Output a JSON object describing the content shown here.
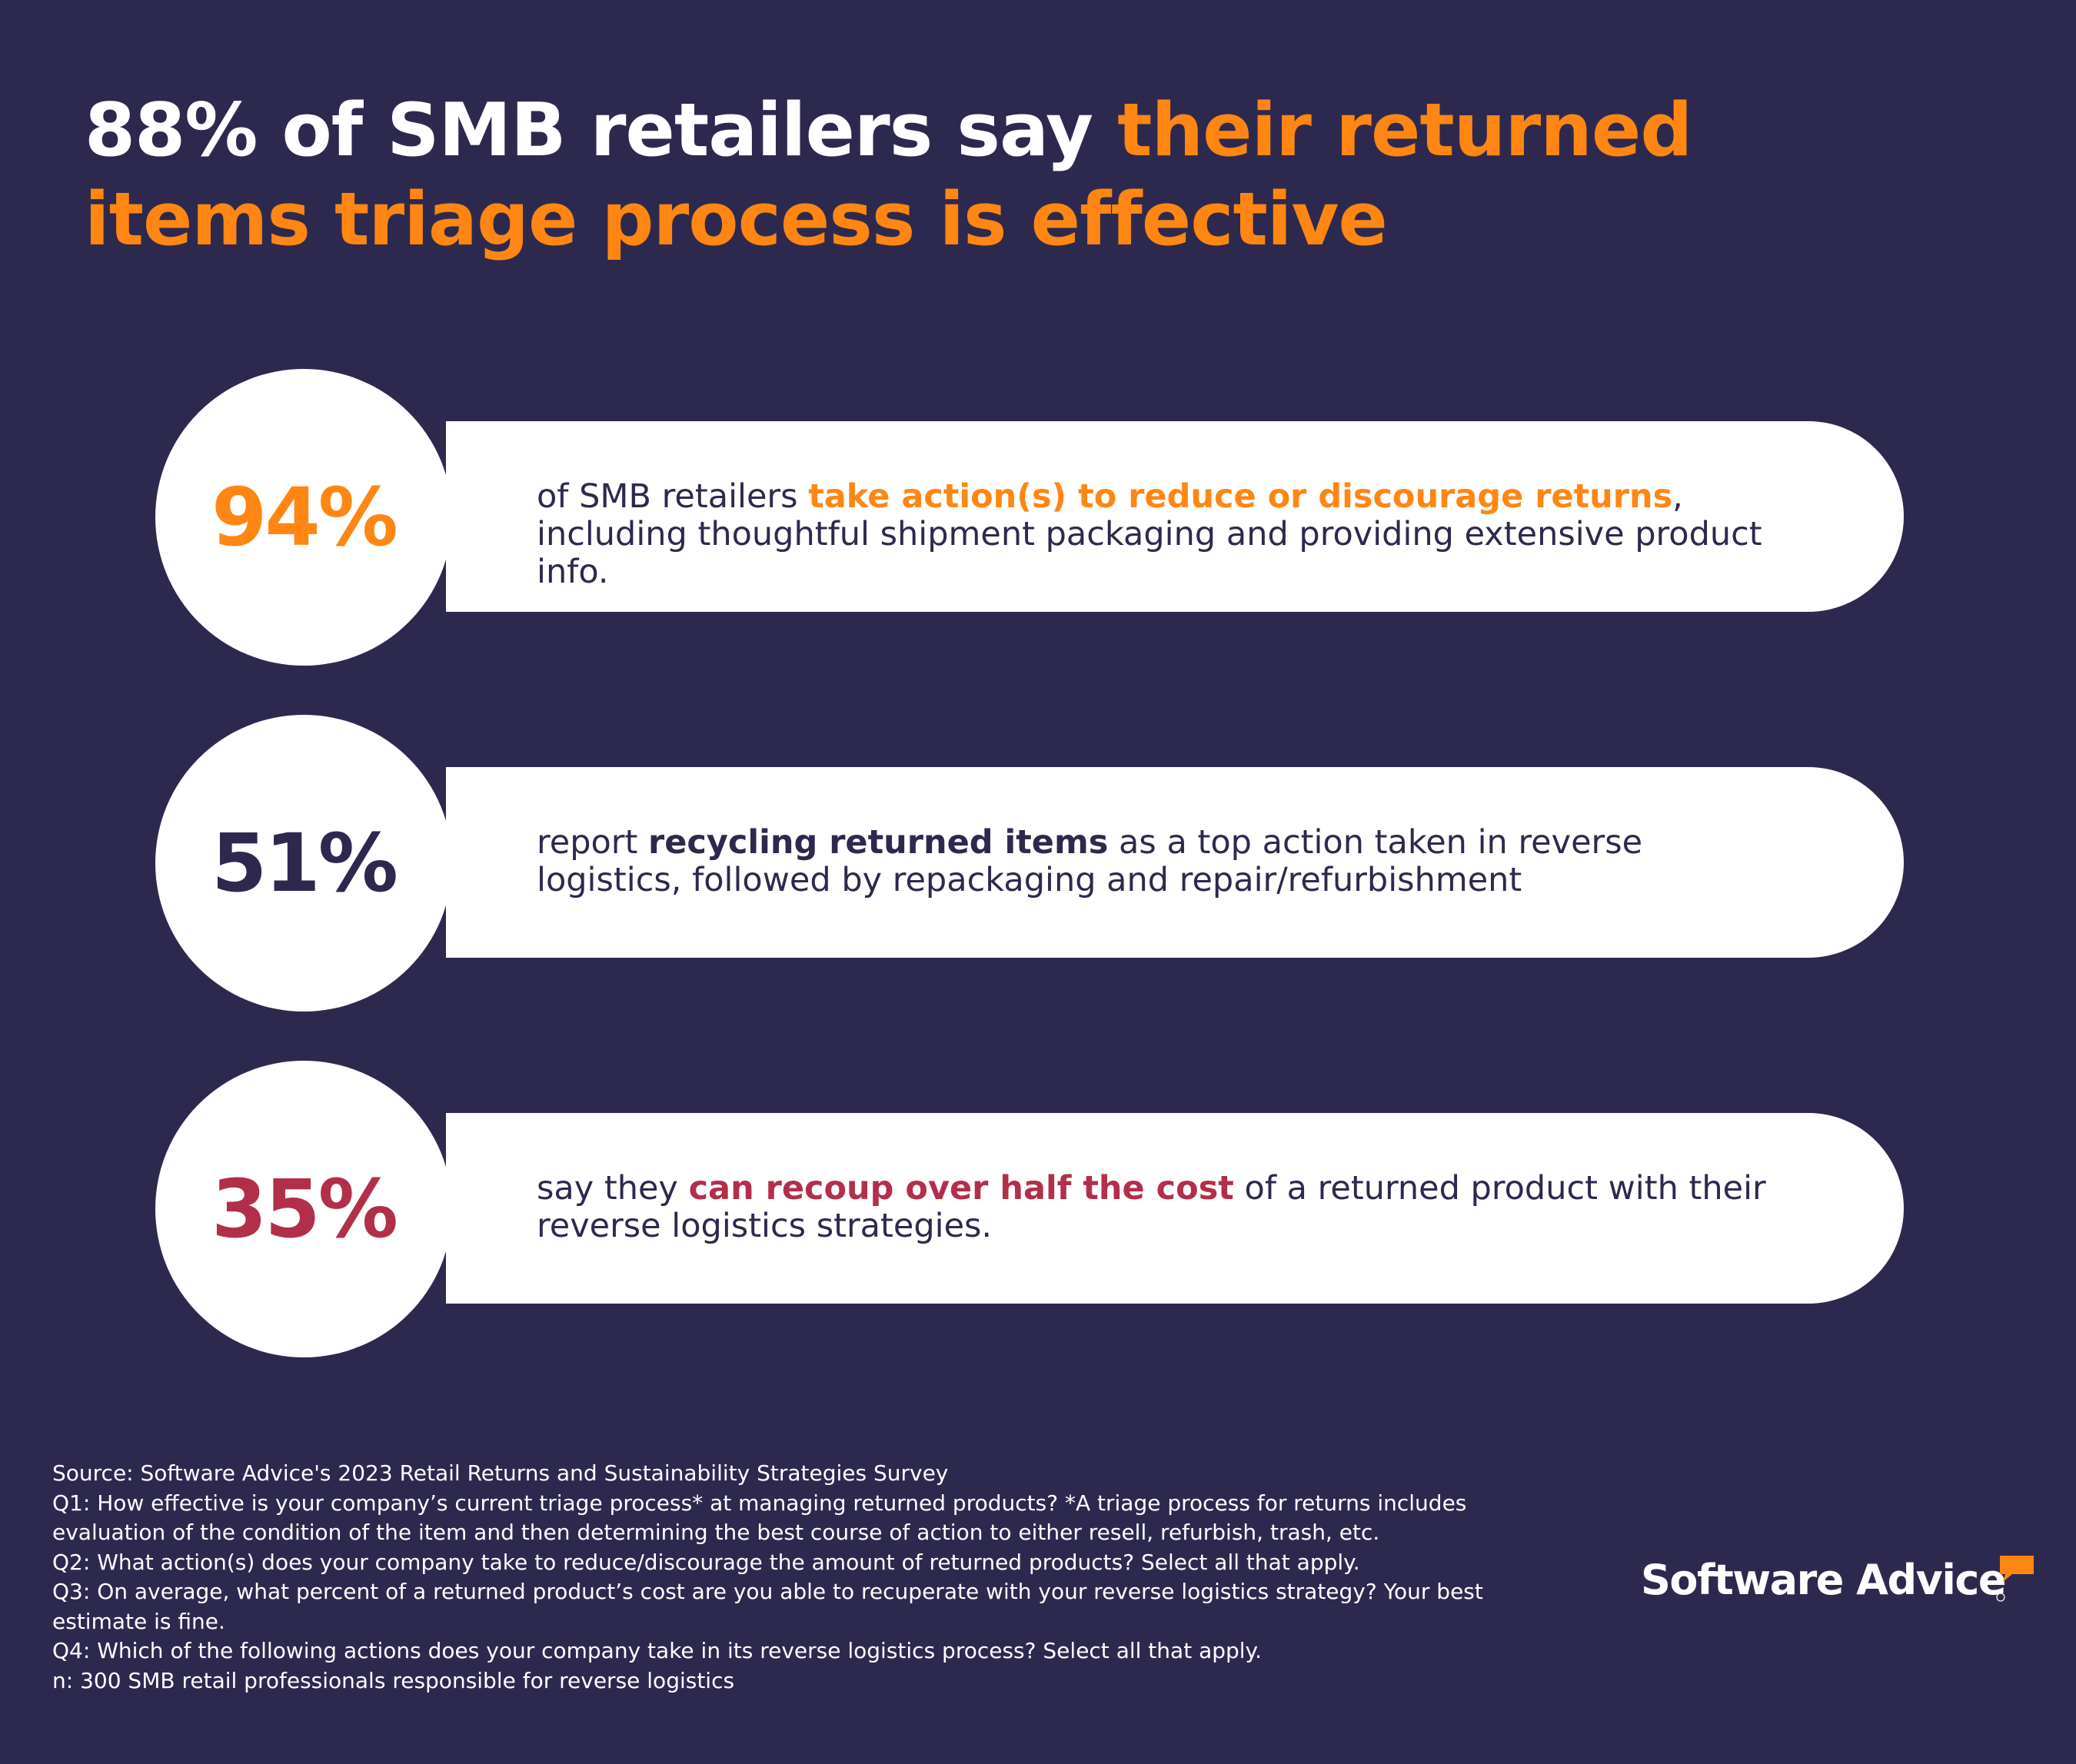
{
  "headline": {
    "part1": "88% of SMB retailers say ",
    "part2": "their returned items triage process is effective"
  },
  "colors": {
    "background": "#2d294e",
    "orange": "#ff8613",
    "navy": "#2d294e",
    "crimson": "#b22f4a",
    "white": "#ffffff"
  },
  "stats": [
    {
      "value": "94%",
      "color": "#ff8613",
      "text_before": "of SMB retailers ",
      "highlight": "take action(s) to reduce or discourage returns",
      "text_after": ", including thoughtful shipment packaging and providing extensive product info."
    },
    {
      "value": "51%",
      "color": "#2d294e",
      "text_before": "report ",
      "highlight": "recycling returned items",
      "text_after": " as a top action taken in reverse logistics, followed by repackaging and repair/refurbishment"
    },
    {
      "value": "35%",
      "color": "#b22f4a",
      "text_before": "say they ",
      "highlight": "can recoup over half the cost",
      "text_after": " of a returned product with their reverse logistics strategies."
    }
  ],
  "footnotes": {
    "source": "Source: Software Advice's 2023 Retail Returns and Sustainability Strategies Survey",
    "q1": "Q1: How effective is your company’s current triage process* at managing returned products? *A triage process for returns includes evaluation of the condition of the item and then determining the best course of action to either resell, refurbish, trash, etc.",
    "q2": "Q2: What action(s) does your company take to reduce/discourage the amount of returned products? Select all that apply.",
    "q3": "Q3: On average, what percent of a returned product’s cost are you able to recuperate with your reverse logistics strategy? Your best estimate is fine.",
    "q4": "Q4: Which of the following actions does your company take in its reverse logistics process? Select all that apply.",
    "n": "n: 300 SMB retail professionals responsible for reverse logistics"
  },
  "logo": {
    "text": "Software Advice",
    "icon": "speech-bubble-icon"
  }
}
